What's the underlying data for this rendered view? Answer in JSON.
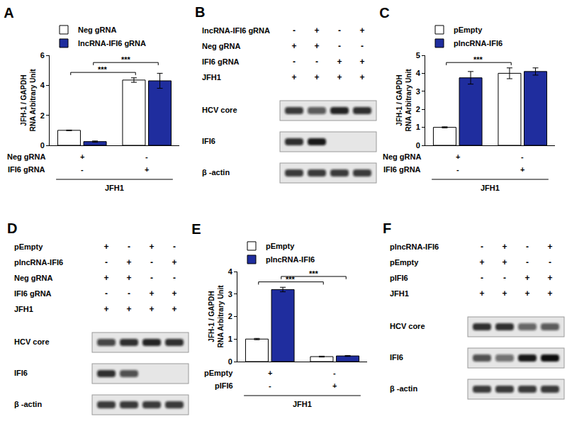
{
  "chart_data": [
    {
      "type": "bar",
      "title": "A",
      "ylabel": [
        "JFH-1 / GAPDH",
        "RNA Arbitrary Unit"
      ],
      "categories": [
        null,
        null
      ],
      "series": [
        {
          "name": "Neg gRNA",
          "color": "#ffffff",
          "values": [
            1,
            4.35
          ],
          "error": [
            0.02,
            0.15
          ]
        },
        {
          "name": "lncRNA-IFI6 gRNA",
          "color": "#1f2d9e",
          "values": [
            0.25,
            4.3
          ],
          "error": [
            0.04,
            0.5
          ]
        }
      ],
      "ylim": [
        0,
        6
      ],
      "yticks": [
        0,
        2,
        4,
        6
      ],
      "grid": false,
      "legend": "top left",
      "annotations": [
        {
          "text": "***",
          "between": [
            [
              "Neg gRNA",
              0
            ],
            [
              "Neg gRNA",
              1
            ]
          ]
        },
        {
          "text": "***",
          "between": [
            [
              "lncRNA-IFI6 gRNA",
              0
            ],
            [
              "lncRNA-IFI6 gRNA",
              1
            ]
          ]
        }
      ],
      "conditions": [
        {
          "label": "Neg gRNA",
          "marks": [
            "+",
            "-"
          ]
        },
        {
          "label": "IFI6 gRNA",
          "marks": [
            "-",
            "+"
          ]
        }
      ],
      "group_label": "JFH1"
    },
    {
      "type": "bar",
      "title": "C",
      "ylabel": [
        "JFH-1 / GAPDH",
        "RNA Arbitrary Unit"
      ],
      "categories": [
        null,
        null
      ],
      "series": [
        {
          "name": "pEmpty",
          "color": "#ffffff",
          "values": [
            1,
            4.0
          ],
          "error": [
            0.03,
            0.3
          ]
        },
        {
          "name": "plncRNA-IFI6",
          "color": "#1f2d9e",
          "values": [
            3.75,
            4.1
          ],
          "error": [
            0.35,
            0.2
          ]
        }
      ],
      "ylim": [
        0,
        5
      ],
      "yticks": [
        0,
        1,
        2,
        3,
        4,
        5
      ],
      "grid": false,
      "legend": "top left",
      "annotations": [
        {
          "text": "***",
          "between": [
            [
              "pEmpty",
              0
            ],
            [
              "pEmpty",
              1
            ]
          ]
        }
      ],
      "conditions": [
        {
          "label": "Neg gRNA",
          "marks": [
            "+",
            "-"
          ]
        },
        {
          "label": "IFI6 gRNA",
          "marks": [
            "-",
            "+"
          ]
        }
      ],
      "group_label": "JFH1"
    },
    {
      "type": "bar",
      "title": "E",
      "ylabel": [
        "JFH-1 / GAPDH",
        "RNA Arbitrary Unit"
      ],
      "categories": [
        null,
        null
      ],
      "series": [
        {
          "name": "pEmpty",
          "color": "#ffffff",
          "values": [
            1,
            0.22
          ],
          "error": [
            0.03,
            0.02
          ]
        },
        {
          "name": "plncRNA-IFI6",
          "color": "#1f2d9e",
          "values": [
            3.2,
            0.25
          ],
          "error": [
            0.1,
            0.02
          ]
        }
      ],
      "ylim": [
        0,
        4
      ],
      "yticks": [
        0,
        1,
        2,
        3,
        4
      ],
      "grid": false,
      "legend": "top left",
      "annotations": [
        {
          "text": "***",
          "between": [
            [
              "pEmpty",
              0
            ],
            [
              "pEmpty",
              1
            ]
          ]
        },
        {
          "text": "***",
          "between": [
            [
              "plncRNA-IFI6",
              0
            ],
            [
              "plncRNA-IFI6",
              1
            ]
          ]
        }
      ],
      "conditions": [
        {
          "label": "pEmpty",
          "marks": [
            "+",
            "-"
          ]
        },
        {
          "label": "pIFI6",
          "marks": [
            "-",
            "+"
          ]
        }
      ],
      "group_label": "JFH1"
    }
  ],
  "blots": [
    {
      "title": "B",
      "conditions": [
        {
          "label": "lncRNA-IFI6 gRNA",
          "marks": [
            "-",
            "+",
            "-",
            "+"
          ]
        },
        {
          "label": "Neg gRNA",
          "marks": [
            "+",
            "+",
            "-",
            "-"
          ]
        },
        {
          "label": "IFI6 gRNA",
          "marks": [
            "-",
            "-",
            "+",
            "+"
          ]
        },
        {
          "label": "JFH1",
          "marks": [
            "+",
            "+",
            "+",
            "+"
          ]
        }
      ],
      "bands": [
        {
          "label": "HCV core",
          "intensity": [
            0.8,
            0.65,
            0.9,
            0.85
          ]
        },
        {
          "label": "IFI6",
          "intensity": [
            0.85,
            0.95,
            0,
            0
          ]
        },
        {
          "label": "β -actin",
          "intensity": [
            0.8,
            0.8,
            0.8,
            0.8
          ]
        }
      ]
    },
    {
      "title": "D",
      "conditions": [
        {
          "label": "pEmpty",
          "marks": [
            "+",
            "-",
            "+",
            "-"
          ]
        },
        {
          "label": "plncRNA-IFI6",
          "marks": [
            "-",
            "+",
            "-",
            "+"
          ]
        },
        {
          "label": "Neg gRNA",
          "marks": [
            "+",
            "+",
            "-",
            "-"
          ]
        },
        {
          "label": "IFI6 gRNA",
          "marks": [
            "-",
            "-",
            "+",
            "+"
          ]
        },
        {
          "label": "JFH1",
          "marks": [
            "+",
            "+",
            "+",
            "+"
          ]
        }
      ],
      "bands": [
        {
          "label": "HCV core",
          "intensity": [
            0.75,
            0.85,
            0.9,
            0.85
          ]
        },
        {
          "label": "IFI6",
          "intensity": [
            0.85,
            0.7,
            0,
            0
          ]
        },
        {
          "label": "β -actin",
          "intensity": [
            0.8,
            0.8,
            0.8,
            0.8
          ]
        }
      ]
    },
    {
      "title": "F",
      "conditions": [
        {
          "label": "plncRNA-IFI6",
          "marks": [
            "-",
            "+",
            "-",
            "+"
          ]
        },
        {
          "label": "pEmpty",
          "marks": [
            "+",
            "+",
            "-",
            "-"
          ]
        },
        {
          "label": "pIFI6",
          "marks": [
            "-",
            "-",
            "+",
            "+"
          ]
        },
        {
          "label": "JFH1",
          "marks": [
            "+",
            "+",
            "+",
            "+"
          ]
        }
      ],
      "bands": [
        {
          "label": "HCV core",
          "intensity": [
            0.85,
            0.85,
            0.6,
            0.65
          ]
        },
        {
          "label": "IFI6",
          "intensity": [
            0.7,
            0.55,
            0.95,
            1
          ]
        },
        {
          "label": "β -actin",
          "intensity": [
            0.8,
            0.8,
            0.8,
            0.8
          ]
        }
      ]
    }
  ]
}
